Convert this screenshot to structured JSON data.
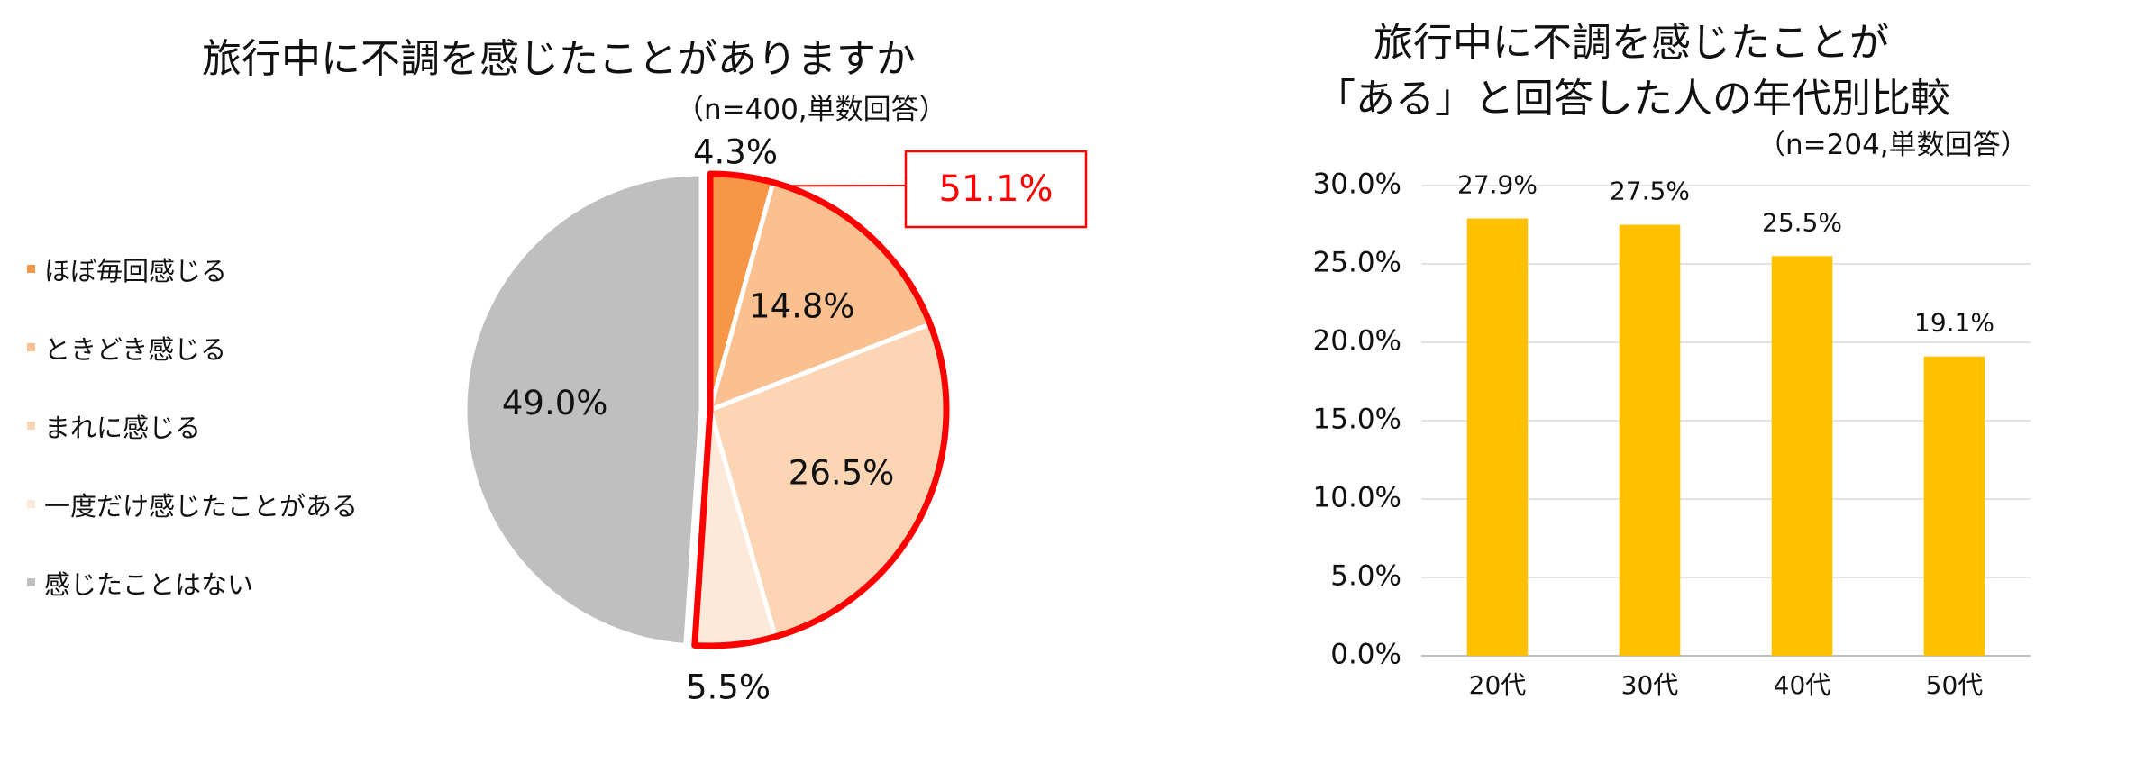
{
  "chart_data": [
    {
      "type": "pie",
      "title": "旅行中に不調を感じたことがありますか",
      "subtitle": "（n=400,単数回答）",
      "categories": [
        "ほぼ毎回感じる",
        "ときどき感じる",
        "まれに感じる",
        "一度だけ感じたことがある",
        "感じたことはない"
      ],
      "values": [
        4.3,
        14.8,
        26.5,
        5.5,
        49.0
      ],
      "value_labels": [
        "4.3%",
        "14.8%",
        "26.5%",
        "5.5%",
        "49.0%"
      ],
      "colors": [
        "#F79646",
        "#FAC090",
        "#FCD5B5",
        "#FDE9D9",
        "#BFBFBF"
      ],
      "legend_position": "left",
      "annotation": {
        "text": "51.1%",
        "color": "#FF0000"
      }
    },
    {
      "type": "bar",
      "title": "旅行中に不調を感じたことが「ある」と回答した人の年代別比較",
      "title_lines": [
        "旅行中に不調を感じたことが",
        "「ある」と回答した人の年代別比較"
      ],
      "subtitle": "（n=204,単数回答）",
      "categories": [
        "20代",
        "30代",
        "40代",
        "50代"
      ],
      "values": [
        27.9,
        27.5,
        25.5,
        19.1
      ],
      "value_labels": [
        "27.9%",
        "27.5%",
        "25.5%",
        "19.1%"
      ],
      "y_ticks": [
        "0.0%",
        "5.0%",
        "10.0%",
        "15.0%",
        "20.0%",
        "25.0%",
        "30.0%"
      ],
      "ylim": [
        0,
        30
      ],
      "grid": true,
      "color": "#FFC000"
    }
  ]
}
